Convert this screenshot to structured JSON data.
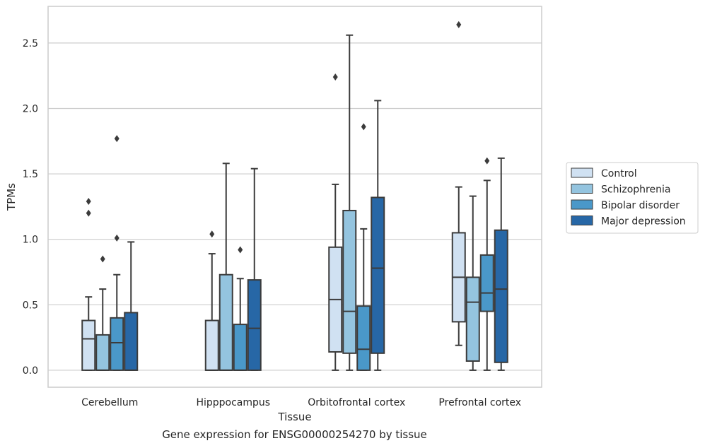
{
  "chart_data": {
    "type": "box",
    "xlabel": "Tissue",
    "ylabel": "TPMs",
    "caption": "Gene expression for ENSG00000254270 by tissue",
    "ylim": [
      -0.13,
      2.78
    ],
    "yticks": [
      "0.0",
      "0.5",
      "1.0",
      "1.5",
      "2.0",
      "2.5"
    ],
    "ytick_values": [
      0,
      0.5,
      1.0,
      1.5,
      2.0,
      2.5
    ],
    "grid": "horizontal",
    "legend_position": "center-right-outside",
    "categories": [
      "Cerebellum",
      "Hipppocampus",
      "Orbitofrontal cortex",
      "Prefrontal cortex"
    ],
    "series": [
      {
        "name": "Control",
        "color": "#d0e1f2",
        "boxes": [
          {
            "whislo": 0,
            "q1": 0,
            "med": 0.24,
            "q3": 0.38,
            "whishi": 0.56,
            "fliers": [
              1.29,
              1.2
            ]
          },
          {
            "whislo": 0,
            "q1": 0,
            "med": 0,
            "q3": 0.38,
            "whishi": 0.89,
            "fliers": [
              1.04
            ]
          },
          {
            "whislo": 0,
            "q1": 0.14,
            "med": 0.54,
            "q3": 0.94,
            "whishi": 1.42,
            "fliers": [
              2.24
            ]
          },
          {
            "whislo": 0.19,
            "q1": 0.37,
            "med": 0.71,
            "q3": 1.05,
            "whishi": 1.4,
            "fliers": [
              2.64
            ]
          }
        ]
      },
      {
        "name": "Schizophrenia",
        "color": "#94c4df",
        "boxes": [
          {
            "whislo": 0,
            "q1": 0,
            "med": 0,
            "q3": 0.27,
            "whishi": 0.62,
            "fliers": [
              0.85
            ]
          },
          {
            "whislo": 0,
            "q1": 0,
            "med": 0,
            "q3": 0.73,
            "whishi": 1.58,
            "fliers": []
          },
          {
            "whislo": 0,
            "q1": 0.13,
            "med": 0.45,
            "q3": 1.22,
            "whishi": 2.56,
            "fliers": []
          },
          {
            "whislo": 0,
            "q1": 0.07,
            "med": 0.52,
            "q3": 0.71,
            "whishi": 1.33,
            "fliers": []
          }
        ]
      },
      {
        "name": "Bipolar disorder",
        "color": "#4a98c9",
        "boxes": [
          {
            "whislo": 0,
            "q1": 0,
            "med": 0.21,
            "q3": 0.4,
            "whishi": 0.73,
            "fliers": [
              1.77,
              1.01
            ]
          },
          {
            "whislo": 0,
            "q1": 0,
            "med": 0,
            "q3": 0.35,
            "whishi": 0.7,
            "fliers": [
              0.92
            ]
          },
          {
            "whislo": 0,
            "q1": 0,
            "med": 0.16,
            "q3": 0.49,
            "whishi": 1.08,
            "fliers": [
              1.86
            ]
          },
          {
            "whislo": 0,
            "q1": 0.45,
            "med": 0.59,
            "q3": 0.88,
            "whishi": 1.45,
            "fliers": [
              1.6
            ]
          }
        ]
      },
      {
        "name": "Major depression",
        "color": "#2767a6",
        "boxes": [
          {
            "whislo": 0,
            "q1": 0,
            "med": 0,
            "q3": 0.44,
            "whishi": 0.98,
            "fliers": []
          },
          {
            "whislo": 0,
            "q1": 0,
            "med": 0.32,
            "q3": 0.69,
            "whishi": 1.54,
            "fliers": []
          },
          {
            "whislo": 0,
            "q1": 0.13,
            "med": 0.78,
            "q3": 1.32,
            "whishi": 2.06,
            "fliers": []
          },
          {
            "whislo": 0,
            "q1": 0.06,
            "med": 0.62,
            "q3": 1.07,
            "whishi": 1.62,
            "fliers": []
          }
        ]
      }
    ]
  }
}
